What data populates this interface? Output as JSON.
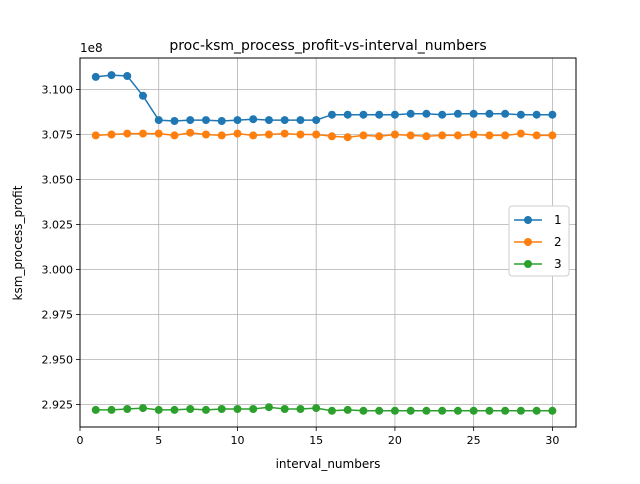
{
  "chart_data": {
    "type": "line",
    "title": "proc-ksm_process_profit-vs-interval_numbers",
    "xlabel": "interval_numbers",
    "ylabel": "ksm_process_profit",
    "y_offset_label": "1e8",
    "xlim": [
      0,
      31.5
    ],
    "ylim": [
      2.9125,
      3.1175
    ],
    "xticks": [
      0,
      5,
      10,
      15,
      20,
      25,
      30
    ],
    "xtick_labels": [
      "0",
      "5",
      "10",
      "15",
      "20",
      "25",
      "30"
    ],
    "yticks": [
      2.925,
      2.95,
      2.975,
      3.0,
      3.025,
      3.05,
      3.075,
      3.1
    ],
    "ytick_labels": [
      "2.925",
      "2.950",
      "2.975",
      "3.000",
      "3.025",
      "3.050",
      "3.075",
      "3.100"
    ],
    "grid": true,
    "legend_position": "center-right",
    "x": [
      1,
      2,
      3,
      4,
      5,
      6,
      7,
      8,
      9,
      10,
      11,
      12,
      13,
      14,
      15,
      16,
      17,
      18,
      19,
      20,
      21,
      22,
      23,
      24,
      25,
      26,
      27,
      28,
      29,
      30
    ],
    "series": [
      {
        "name": "1",
        "color": "#1f77b4",
        "values": [
          3.107,
          3.108,
          3.1075,
          3.0965,
          3.083,
          3.0825,
          3.083,
          3.083,
          3.0825,
          3.083,
          3.0835,
          3.083,
          3.083,
          3.083,
          3.083,
          3.086,
          3.086,
          3.086,
          3.086,
          3.086,
          3.0865,
          3.0865,
          3.086,
          3.0865,
          3.0865,
          3.0865,
          3.0865,
          3.086,
          3.086,
          3.086
        ]
      },
      {
        "name": "2",
        "color": "#ff7f0e",
        "values": [
          3.0745,
          3.075,
          3.0755,
          3.0755,
          3.0755,
          3.0745,
          3.076,
          3.075,
          3.0745,
          3.0755,
          3.0745,
          3.075,
          3.0755,
          3.075,
          3.075,
          3.074,
          3.0735,
          3.0745,
          3.074,
          3.075,
          3.0745,
          3.074,
          3.0745,
          3.0745,
          3.075,
          3.0745,
          3.0745,
          3.0755,
          3.0745,
          3.0745
        ]
      },
      {
        "name": "3",
        "color": "#2ca02c",
        "values": [
          2.922,
          2.922,
          2.9225,
          2.923,
          2.922,
          2.922,
          2.9225,
          2.922,
          2.9225,
          2.9225,
          2.9225,
          2.9235,
          2.9225,
          2.9225,
          2.923,
          2.9215,
          2.922,
          2.9215,
          2.9215,
          2.9215,
          2.9215,
          2.9215,
          2.9215,
          2.9215,
          2.9215,
          2.9215,
          2.9215,
          2.9215,
          2.9215,
          2.9215
        ]
      }
    ]
  }
}
